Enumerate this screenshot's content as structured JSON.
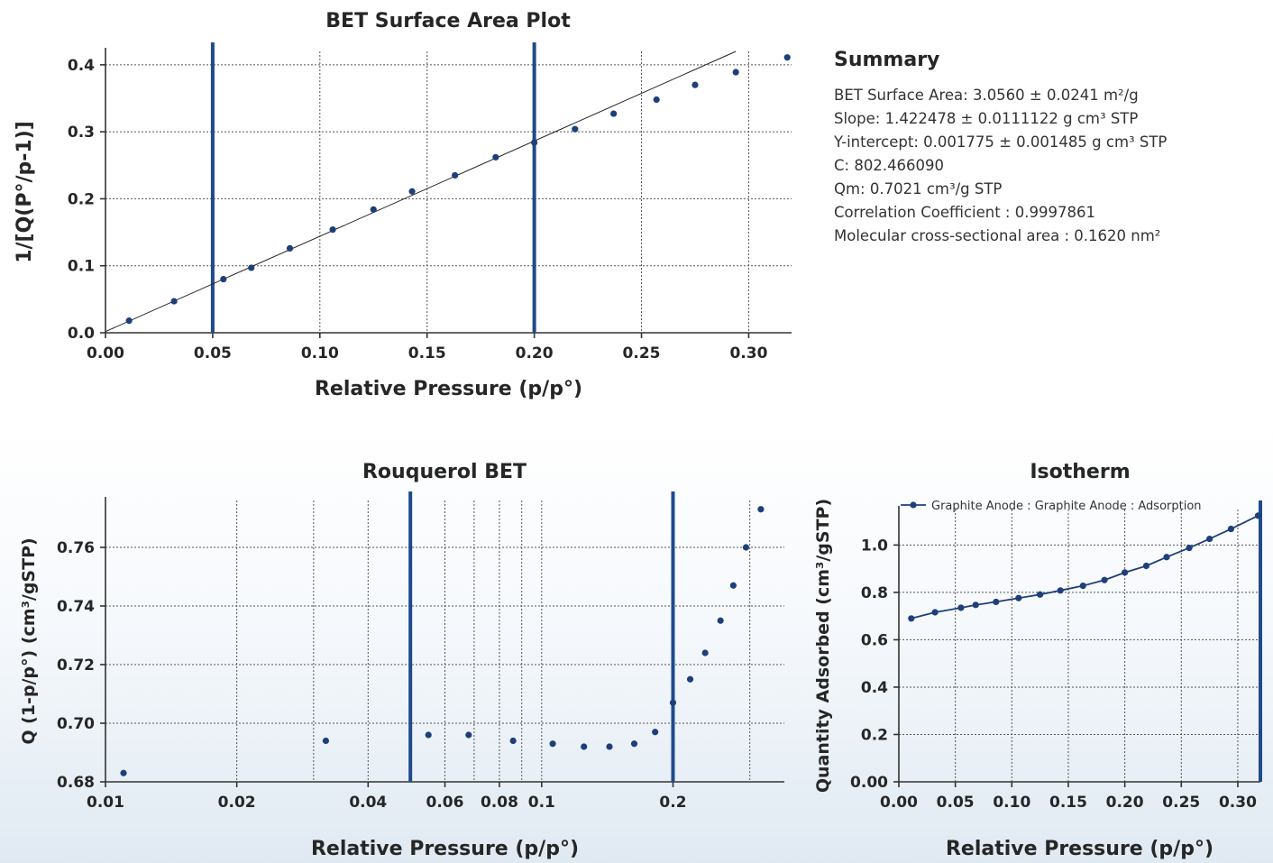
{
  "colors": {
    "series": "#1f3f7a",
    "marker_lines": "#1f4a8c",
    "fit_line": "#222222"
  },
  "summary": {
    "title": "Summary",
    "lines": [
      "BET Surface Area: 3.0560 ± 0.0241 m²/g",
      "Slope: 1.422478 ± 0.0111122 g cm³ STP",
      "Y-intercept: 0.001775 ± 0.001485 g cm³ STP",
      "C: 802.466090",
      "Qm: 0.7021 cm³/g STP",
      "Correlation Coefficient : 0.9997861",
      "Molecular cross-sectional area : 0.1620 nm²"
    ]
  },
  "chart_data": [
    {
      "id": "bet",
      "type": "scatter",
      "title": "BET Surface Area Plot",
      "xlabel": "Relative Pressure (p/p°)",
      "ylabel": "1/[Q(P°/p-1)]",
      "xlim": [
        0,
        0.32
      ],
      "ylim": [
        0,
        0.42
      ],
      "xticks": [
        0.0,
        0.05,
        0.1,
        0.15,
        0.2,
        0.25,
        0.3
      ],
      "xtick_labels": [
        "0.00",
        "0.05",
        "0.10",
        "0.15",
        "0.20",
        "0.25",
        "0.30"
      ],
      "yticks": [
        0.0,
        0.1,
        0.2,
        0.3,
        0.4
      ],
      "ytick_labels": [
        "0.0",
        "0.1",
        "0.2",
        "0.3",
        "0.4"
      ],
      "grid": true,
      "x": [
        0.011,
        0.032,
        0.055,
        0.068,
        0.086,
        0.106,
        0.125,
        0.143,
        0.163,
        0.182,
        0.2,
        0.219,
        0.237,
        0.257,
        0.275,
        0.294,
        0.318
      ],
      "y": [
        0.018,
        0.047,
        0.08,
        0.097,
        0.126,
        0.154,
        0.184,
        0.211,
        0.235,
        0.262,
        0.284,
        0.304,
        0.327,
        0.348,
        0.37,
        0.389,
        0.411
      ],
      "fit_line": {
        "slope": 1.422478,
        "intercept": 0.001775,
        "x_range": [
          0,
          0.294
        ]
      },
      "vertical_lines": [
        0.05,
        0.2
      ]
    },
    {
      "id": "rouquerol",
      "type": "scatter",
      "title": "Rouquerol BET",
      "xlabel": "Relative Pressure (p/p°)",
      "ylabel": "Q (1-p/p°) (cm³/gSTP)",
      "x_scale": "log",
      "xlim": [
        0.01,
        0.36
      ],
      "ylim": [
        0.68,
        0.776
      ],
      "xticks": [
        0.01,
        0.02,
        0.04,
        0.06,
        0.08,
        0.1,
        0.2
      ],
      "xtick_labels": [
        "0.01",
        "0.02",
        "0.04",
        "0.06",
        "0.08",
        "0.1",
        "0.2"
      ],
      "x_minor_grid": [
        0.03,
        0.05,
        0.07,
        0.09,
        0.3
      ],
      "yticks": [
        0.68,
        0.7,
        0.72,
        0.74,
        0.76
      ],
      "ytick_labels": [
        "0.68",
        "0.70",
        "0.72",
        "0.74",
        "0.76"
      ],
      "grid": true,
      "x": [
        0.011,
        0.032,
        0.055,
        0.068,
        0.086,
        0.106,
        0.125,
        0.143,
        0.163,
        0.182,
        0.2,
        0.219,
        0.237,
        0.257,
        0.275,
        0.294,
        0.318
      ],
      "y": [
        0.683,
        0.694,
        0.696,
        0.696,
        0.694,
        0.693,
        0.692,
        0.692,
        0.693,
        0.697,
        0.707,
        0.715,
        0.724,
        0.735,
        0.747,
        0.76,
        0.773
      ],
      "vertical_lines": [
        0.05,
        0.2
      ]
    },
    {
      "id": "isotherm",
      "type": "line",
      "title": "Isotherm",
      "xlabel": "Relative Pressure (p/p°)",
      "ylabel": "Quantity Adsorbed (cm³/gSTP)",
      "xlim": [
        0,
        0.32
      ],
      "ylim": [
        0,
        1.15
      ],
      "xticks": [
        0.0,
        0.05,
        0.1,
        0.15,
        0.2,
        0.25,
        0.3
      ],
      "xtick_labels": [
        "0.00",
        "0.05",
        "0.10",
        "0.15",
        "0.20",
        "0.25",
        "0.30"
      ],
      "yticks": [
        0.0,
        0.2,
        0.4,
        0.6,
        0.8,
        1.0
      ],
      "ytick_labels": [
        "0.00",
        "0.2",
        "0.4",
        "0.6",
        "0.8",
        "1.0"
      ],
      "grid": true,
      "legend": "top-left",
      "series": [
        {
          "name": "Graphite Anode : Graphite Anode : Adsorption",
          "x": [
            0.011,
            0.032,
            0.055,
            0.068,
            0.086,
            0.106,
            0.125,
            0.143,
            0.163,
            0.182,
            0.2,
            0.219,
            0.237,
            0.257,
            0.275,
            0.294,
            0.318
          ],
          "y": [
            0.69,
            0.716,
            0.735,
            0.747,
            0.76,
            0.776,
            0.791,
            0.808,
            0.828,
            0.852,
            0.884,
            0.912,
            0.949,
            0.988,
            1.026,
            1.068,
            1.124
          ]
        }
      ],
      "vertical_lines": [
        0.32
      ]
    }
  ]
}
